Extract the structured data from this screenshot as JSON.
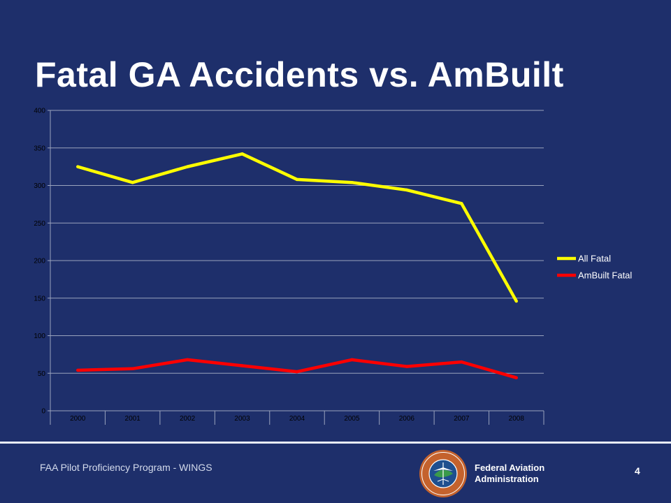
{
  "slide": {
    "title": "Fatal GA Accidents vs. AmBuilt",
    "footer_text": "FAA Pilot Proficiency Program - WINGS",
    "agency_line1": "Federal Aviation",
    "agency_line2": "Administration",
    "page_number": "4",
    "seal_text": "FEDERAL AVIATION ADMINISTRATION"
  },
  "colors": {
    "background": "#1e2f6b",
    "plot_area": "#1e2f6b",
    "all_fatal": "#ffff00",
    "ambuilt_fatal": "#ff0000",
    "gridline": "#9aa3bd"
  },
  "chart_data": {
    "type": "line",
    "x": [
      "2000",
      "2001",
      "2002",
      "2003",
      "2004",
      "2005",
      "2006",
      "2007",
      "2008"
    ],
    "series": [
      {
        "name": "All Fatal",
        "values": [
          325,
          304,
          325,
          342,
          308,
          304,
          294,
          276,
          146
        ]
      },
      {
        "name": "AmBuilt Fatal",
        "values": [
          54,
          56,
          68,
          60,
          52,
          68,
          59,
          65,
          44
        ]
      }
    ],
    "yticks": [
      0,
      50,
      100,
      150,
      200,
      250,
      300,
      350,
      400
    ],
    "ylim": [
      0,
      400
    ],
    "grid": true,
    "legend_position": "right"
  }
}
